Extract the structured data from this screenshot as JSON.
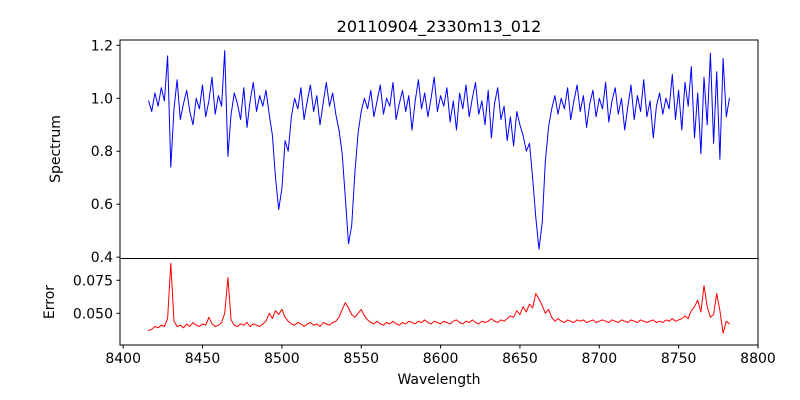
{
  "chart_data": [
    {
      "type": "line",
      "panel": "spectrum",
      "title": "20110904_2330m13_012",
      "ylabel": "Spectrum",
      "xlim": [
        8398,
        8800
      ],
      "ylim": [
        0.395,
        1.22
      ],
      "yticks": [
        0.4,
        0.6,
        0.8,
        1.0,
        1.2
      ],
      "ytick_labels": [
        "0.4",
        "0.6",
        "0.8",
        "1.0",
        "1.2"
      ],
      "xticks": [],
      "xtick_labels": [],
      "grid": false,
      "legend": null,
      "continuum_level": 1.0,
      "absorption_line_centers": [
        8498,
        8542,
        8662
      ],
      "absorption_line_depths": [
        0.58,
        0.45,
        0.43
      ],
      "narrow_artifact_spike_centers": [
        8430,
        8465
      ],
      "series": [
        {
          "name": "spectrum",
          "color": "#0000ff",
          "x_start": 8416,
          "x_step": 2,
          "values": [
            0.99,
            0.95,
            1.02,
            0.97,
            1.04,
            0.99,
            1.16,
            0.74,
            0.96,
            1.07,
            0.92,
            0.98,
            1.03,
            0.95,
            0.9,
            1.0,
            0.96,
            1.05,
            0.93,
            0.99,
            1.08,
            0.94,
            1.01,
            0.97,
            1.18,
            0.78,
            0.94,
            1.02,
            0.98,
            0.92,
            1.04,
            0.89,
            0.99,
            1.06,
            0.95,
            1.01,
            0.97,
            1.03,
            0.94,
            0.86,
            0.7,
            0.58,
            0.66,
            0.84,
            0.8,
            0.93,
            1.0,
            0.96,
            1.04,
            0.92,
            0.99,
            1.05,
            0.95,
            1.01,
            0.9,
            0.98,
            1.06,
            0.97,
            1.02,
            0.94,
            0.88,
            0.79,
            0.62,
            0.45,
            0.52,
            0.72,
            0.87,
            0.95,
            1.0,
            0.96,
            1.03,
            0.93,
            0.99,
            1.05,
            0.94,
            1.0,
            0.97,
            1.06,
            0.92,
            0.98,
            1.03,
            0.95,
            1.01,
            0.88,
            0.99,
            1.07,
            0.96,
            1.02,
            0.93,
            1.0,
            1.08,
            0.95,
            1.01,
            0.97,
            1.04,
            0.91,
            0.99,
            0.88,
            1.02,
            0.96,
            1.05,
            0.93,
            1.0,
            1.06,
            0.94,
            0.99,
            0.9,
            1.03,
            0.85,
            0.98,
            1.04,
            0.92,
            0.97,
            0.84,
            0.93,
            0.82,
            0.95,
            0.9,
            0.86,
            0.8,
            0.83,
            0.7,
            0.55,
            0.43,
            0.53,
            0.76,
            0.89,
            0.96,
            1.01,
            0.94,
            1.0,
            0.96,
            1.04,
            0.92,
            0.99,
            1.05,
            0.95,
            1.01,
            0.89,
            0.98,
            1.03,
            0.93,
            1.0,
            0.96,
            1.06,
            0.91,
            0.99,
            1.04,
            0.94,
            1.0,
            0.88,
            0.97,
            1.05,
            0.92,
            1.01,
            0.95,
            1.07,
            0.93,
            0.99,
            0.85,
            0.97,
            1.02,
            0.94,
            1.0,
            0.96,
            1.09,
            0.92,
            1.03,
            0.88,
            1.06,
            0.97,
            1.12,
            0.85,
            1.02,
            0.79,
            1.08,
            0.9,
            1.17,
            0.83,
            1.1,
            0.77,
            1.15,
            0.93,
            1.0
          ]
        }
      ]
    },
    {
      "type": "line",
      "panel": "error",
      "ylabel": "Error",
      "xlabel": "Wavelength",
      "xlim": [
        8398,
        8800
      ],
      "ylim": [
        0.026,
        0.0915
      ],
      "yticks": [
        0.05,
        0.075
      ],
      "ytick_labels": [
        "0.050",
        "0.075"
      ],
      "xticks": [
        8400,
        8450,
        8500,
        8550,
        8600,
        8650,
        8700,
        8750,
        8800
      ],
      "xtick_labels": [
        "8400",
        "8450",
        "8500",
        "8550",
        "8600",
        "8650",
        "8700",
        "8750",
        "8800"
      ],
      "grid": false,
      "legend": null,
      "baseline_level": 0.042,
      "error_spike_centers": [
        8430,
        8465,
        8542,
        8660,
        8766
      ],
      "error_spike_peaks": [
        0.088,
        0.077,
        0.058,
        0.065,
        0.071
      ],
      "series": [
        {
          "name": "error",
          "color": "#ff0000",
          "x_start": 8416,
          "x_step": 2,
          "values": [
            0.037,
            0.038,
            0.04,
            0.039,
            0.041,
            0.04,
            0.046,
            0.088,
            0.044,
            0.04,
            0.041,
            0.039,
            0.042,
            0.04,
            0.043,
            0.041,
            0.04,
            0.042,
            0.041,
            0.047,
            0.042,
            0.04,
            0.041,
            0.043,
            0.05,
            0.077,
            0.045,
            0.041,
            0.04,
            0.042,
            0.041,
            0.043,
            0.04,
            0.042,
            0.041,
            0.04,
            0.042,
            0.044,
            0.05,
            0.046,
            0.052,
            0.049,
            0.053,
            0.047,
            0.044,
            0.042,
            0.041,
            0.043,
            0.042,
            0.04,
            0.042,
            0.043,
            0.041,
            0.042,
            0.04,
            0.043,
            0.042,
            0.041,
            0.043,
            0.044,
            0.047,
            0.053,
            0.058,
            0.054,
            0.049,
            0.047,
            0.05,
            0.053,
            0.048,
            0.045,
            0.043,
            0.042,
            0.044,
            0.042,
            0.041,
            0.043,
            0.042,
            0.044,
            0.042,
            0.041,
            0.043,
            0.042,
            0.044,
            0.043,
            0.042,
            0.044,
            0.043,
            0.045,
            0.043,
            0.042,
            0.044,
            0.043,
            0.042,
            0.044,
            0.043,
            0.042,
            0.044,
            0.045,
            0.043,
            0.042,
            0.044,
            0.043,
            0.045,
            0.043,
            0.042,
            0.044,
            0.043,
            0.044,
            0.046,
            0.044,
            0.043,
            0.045,
            0.044,
            0.046,
            0.048,
            0.047,
            0.052,
            0.049,
            0.055,
            0.051,
            0.057,
            0.054,
            0.065,
            0.061,
            0.056,
            0.05,
            0.053,
            0.047,
            0.044,
            0.046,
            0.044,
            0.043,
            0.045,
            0.044,
            0.043,
            0.045,
            0.044,
            0.045,
            0.043,
            0.044,
            0.045,
            0.043,
            0.044,
            0.045,
            0.044,
            0.043,
            0.045,
            0.044,
            0.043,
            0.045,
            0.044,
            0.043,
            0.045,
            0.044,
            0.043,
            0.045,
            0.044,
            0.043,
            0.044,
            0.045,
            0.043,
            0.044,
            0.043,
            0.045,
            0.044,
            0.046,
            0.044,
            0.045,
            0.046,
            0.048,
            0.046,
            0.052,
            0.055,
            0.06,
            0.051,
            0.071,
            0.055,
            0.047,
            0.049,
            0.065,
            0.052,
            0.035,
            0.044,
            0.042
          ]
        }
      ]
    }
  ]
}
